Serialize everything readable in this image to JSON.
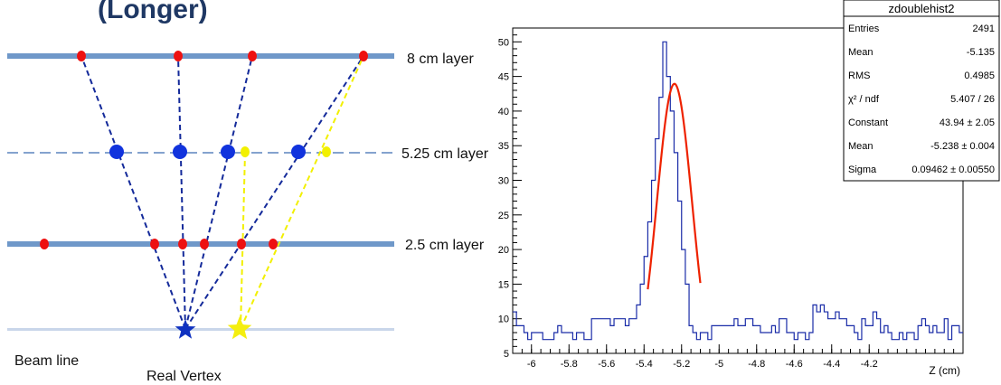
{
  "diagram": {
    "header_partial": "(Longer)",
    "layer_labels": [
      "8 cm layer",
      "5.25 cm layer",
      "2.5 cm layer"
    ],
    "beam_line_label": "Beam line",
    "vertex_label": "Real Vertex",
    "colors": {
      "layer": "#6f98c9",
      "hit_red": "#ee1111",
      "hit_blue": "#1133dd",
      "track_blue": "#142a9a",
      "track_yellow": "#f2f000",
      "star_blue": "#1032c0",
      "star_yellow": "#f4ee10",
      "beam": "#c9d6ea"
    }
  },
  "chart_data": {
    "type": "histogram",
    "title": "",
    "xlabel": "Z (cm)",
    "ylabel": "",
    "xlim": [
      -6.1,
      -3.7
    ],
    "ylim": [
      5,
      52
    ],
    "x_ticks": [
      -6,
      -5.8,
      -5.6,
      -5.4,
      -5.2,
      -5,
      -4.8,
      -4.6,
      -4.4,
      -4.2
    ],
    "y_ticks": [
      5,
      10,
      15,
      20,
      25,
      30,
      35,
      40,
      45,
      50
    ],
    "bin_width": 0.02,
    "bin_start": -6.1,
    "counts": [
      11,
      9,
      9,
      8,
      7,
      8,
      8,
      8,
      7,
      7,
      7,
      8,
      9,
      8,
      8,
      8,
      7,
      8,
      8,
      7,
      7,
      10,
      10,
      10,
      10,
      10,
      9,
      10,
      10,
      10,
      9,
      10,
      10,
      12,
      15,
      19,
      24,
      30,
      36,
      42,
      50,
      45,
      40,
      34,
      27,
      20,
      15,
      9,
      8,
      7,
      8,
      8,
      7,
      9,
      9,
      9,
      9,
      9,
      9,
      10,
      9,
      9,
      10,
      10,
      9,
      9,
      8,
      8,
      8,
      9,
      8,
      10,
      10,
      8,
      8,
      7,
      8,
      8,
      7,
      8,
      12,
      11,
      12,
      11,
      10,
      10,
      11,
      10,
      10,
      9,
      9,
      8,
      7,
      10,
      9,
      9,
      11,
      10,
      8,
      9,
      8,
      7,
      7,
      8,
      7,
      8,
      8,
      7,
      9,
      10,
      9,
      8,
      9,
      8,
      8,
      10,
      7,
      9,
      9,
      8
    ],
    "fit": {
      "function": "gaus",
      "range": [
        -5.38,
        -5.1
      ],
      "constant": 43.94,
      "mean": -5.238,
      "sigma": 0.09462,
      "color": "#ee2200"
    },
    "line_color": "#1a2ca8",
    "stats_box": {
      "title": "zdoublehist2",
      "rows": [
        {
          "label": "Entries",
          "value": "2491"
        },
        {
          "label": "Mean",
          "value": "-5.135"
        },
        {
          "label": "RMS",
          "value": "0.4985"
        },
        {
          "label": "χ² / ndf",
          "value": "5.407 / 26"
        },
        {
          "label": "Constant",
          "value": "43.94 ± 2.05"
        },
        {
          "label": "Mean",
          "value": "-5.238 ± 0.004"
        },
        {
          "label": "Sigma",
          "value": "0.09462 ± 0.00550"
        }
      ]
    }
  }
}
